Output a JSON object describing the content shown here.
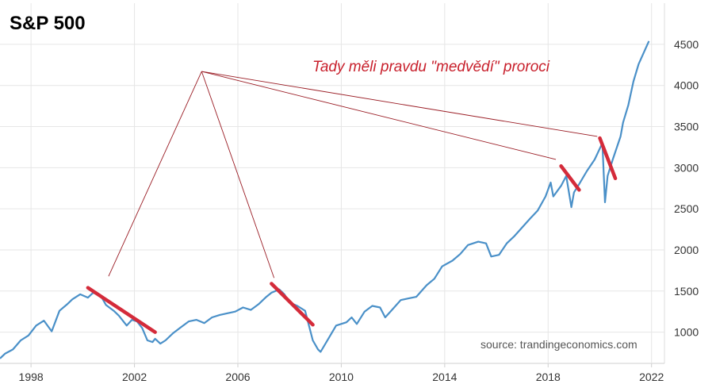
{
  "chart_data": {
    "type": "line",
    "title": "S&P 500",
    "annotation": "Tady měli pravdu \"medvědí\" proroci",
    "source": "source: trandingeconomics.com",
    "xlim": [
      1996.8,
      2022.5
    ],
    "ylim": [
      620,
      4750
    ],
    "x_ticks": [
      "1998",
      "2002",
      "2006",
      "2010",
      "2014",
      "2018",
      "2022"
    ],
    "y_ticks": [
      "1000",
      "1500",
      "2000",
      "2500",
      "3000",
      "3500",
      "4000",
      "4500"
    ],
    "grid": true,
    "y_axis_side": "right",
    "colors": {
      "line": "#4a90c8",
      "highlight": "#d42b3a",
      "annotation": "#c8202c",
      "grid": "#e6e6e6"
    },
    "series": [
      {
        "x": [
          1996.8,
          1997.0,
          1997.3,
          1997.6,
          1997.9,
          1998.2,
          1998.5,
          1998.8,
          1999.1,
          1999.4,
          1999.6,
          1999.9,
          2000.2,
          2000.4,
          2000.7,
          2000.9,
          2001.2,
          2001.4,
          2001.7,
          2001.9,
          2002.1,
          2002.3,
          2002.5,
          2002.7,
          2002.8,
          2003.0,
          2003.2,
          2003.5,
          2003.8,
          2004.1,
          2004.4,
          2004.7,
          2005.0,
          2005.3,
          2005.6,
          2005.9,
          2006.2,
          2006.5,
          2006.8,
          2007.1,
          2007.3,
          2007.6,
          2007.8,
          2008.0,
          2008.3,
          2008.6,
          2008.9,
          2009.1,
          2009.2,
          2009.5,
          2009.8,
          2010.2,
          2010.4,
          2010.6,
          2010.9,
          2011.2,
          2011.5,
          2011.7,
          2011.9,
          2012.3,
          2012.6,
          2012.9,
          2013.3,
          2013.6,
          2013.9,
          2014.3,
          2014.6,
          2014.9,
          2015.3,
          2015.6,
          2015.8,
          2016.1,
          2016.4,
          2016.7,
          2016.9,
          2017.3,
          2017.6,
          2017.9,
          2018.1,
          2018.2,
          2018.5,
          2018.7,
          2018.9,
          2019.0,
          2019.2,
          2019.5,
          2019.8,
          2020.1,
          2020.2,
          2020.3,
          2020.5,
          2020.8,
          2020.9,
          2021.1,
          2021.3,
          2021.5,
          2021.7,
          2021.9
        ],
        "values": [
          680,
          740,
          790,
          900,
          960,
          1080,
          1140,
          1010,
          1260,
          1340,
          1400,
          1460,
          1420,
          1480,
          1440,
          1330,
          1260,
          1200,
          1080,
          1150,
          1130,
          1050,
          900,
          880,
          920,
          860,
          900,
          990,
          1060,
          1130,
          1150,
          1110,
          1180,
          1210,
          1230,
          1250,
          1300,
          1270,
          1340,
          1430,
          1480,
          1520,
          1460,
          1360,
          1320,
          1260,
          900,
          790,
          760,
          920,
          1080,
          1120,
          1180,
          1100,
          1250,
          1320,
          1300,
          1180,
          1250,
          1390,
          1410,
          1430,
          1570,
          1650,
          1800,
          1870,
          1950,
          2060,
          2100,
          2080,
          1920,
          1940,
          2080,
          2170,
          2240,
          2380,
          2480,
          2650,
          2820,
          2650,
          2780,
          2900,
          2520,
          2700,
          2800,
          2960,
          3100,
          3300,
          2580,
          2900,
          3100,
          3380,
          3550,
          3760,
          4050,
          4260,
          4400,
          4540
        ]
      }
    ],
    "highlights": [
      {
        "from": [
          2000.2,
          1540
        ],
        "to": [
          2002.8,
          1000
        ]
      },
      {
        "from": [
          2007.3,
          1590
        ],
        "to": [
          2008.9,
          1090
        ]
      },
      {
        "from": [
          2018.5,
          3020
        ],
        "to": [
          2019.2,
          2730
        ]
      },
      {
        "from": [
          2020.0,
          3360
        ],
        "to": [
          2020.6,
          2870
        ]
      }
    ]
  }
}
